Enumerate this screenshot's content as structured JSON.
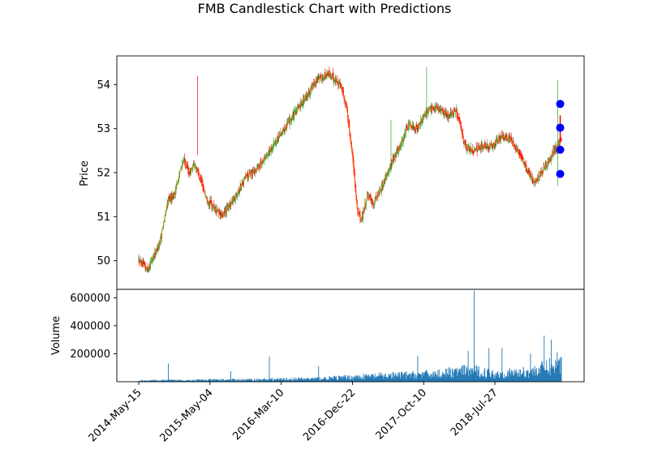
{
  "chart_data": [
    {
      "type": "candlestick",
      "title": "FMB Candlestick Chart with Predictions",
      "ylabel": "Price",
      "ylim": [
        49.35,
        54.65
      ],
      "yticks": [
        50,
        51,
        52,
        53,
        54
      ],
      "up_color": "#2ca02c",
      "down_color": "#ff0000",
      "path_color": "#ff7f0e",
      "trend_points": [
        [
          0,
          50.0
        ],
        [
          15,
          49.8
        ],
        [
          35,
          50.4
        ],
        [
          50,
          51.4
        ],
        [
          60,
          51.5
        ],
        [
          75,
          52.3
        ],
        [
          85,
          52.0
        ],
        [
          95,
          52.2
        ],
        [
          115,
          51.4
        ],
        [
          140,
          51.0
        ],
        [
          160,
          51.4
        ],
        [
          180,
          51.9
        ],
        [
          200,
          52.1
        ],
        [
          220,
          52.5
        ],
        [
          240,
          52.9
        ],
        [
          260,
          53.3
        ],
        [
          280,
          53.7
        ],
        [
          300,
          54.1
        ],
        [
          320,
          54.25
        ],
        [
          340,
          54.0
        ],
        [
          350,
          53.5
        ],
        [
          360,
          52.4
        ],
        [
          368,
          51.2
        ],
        [
          375,
          50.9
        ],
        [
          385,
          51.5
        ],
        [
          395,
          51.3
        ],
        [
          410,
          51.7
        ],
        [
          425,
          52.2
        ],
        [
          440,
          52.6
        ],
        [
          455,
          53.1
        ],
        [
          470,
          53.0
        ],
        [
          485,
          53.4
        ],
        [
          500,
          53.5
        ],
        [
          520,
          53.3
        ],
        [
          535,
          53.4
        ],
        [
          550,
          52.6
        ],
        [
          565,
          52.5
        ],
        [
          580,
          52.6
        ],
        [
          595,
          52.6
        ],
        [
          610,
          52.8
        ],
        [
          625,
          52.8
        ],
        [
          645,
          52.3
        ],
        [
          665,
          51.8
        ],
        [
          680,
          52.0
        ],
        [
          700,
          52.5
        ],
        [
          710,
          52.7
        ]
      ],
      "spikes": [
        {
          "x_index": 99,
          "high": 54.2,
          "low": 52.4
        },
        {
          "x_index": 425,
          "high": 53.2,
          "low": 52.0
        },
        {
          "x_index": 485,
          "high": 54.4,
          "low": 53.2
        },
        {
          "x_index": 706,
          "high": 54.1,
          "low": 51.7
        }
      ],
      "predictions": {
        "color": "#0000ff",
        "x_index": 710,
        "values": [
          53.56,
          53.02,
          52.52,
          51.97
        ]
      }
    },
    {
      "type": "bar",
      "ylabel": "Volume",
      "ylim": [
        0,
        660000
      ],
      "yticks": [
        200000,
        400000,
        600000
      ],
      "ytick_labels": [
        "200000",
        "400000",
        "600000"
      ],
      "color": "#1f77b4",
      "base_points": [
        [
          0,
          8000
        ],
        [
          100,
          12000
        ],
        [
          200,
          15000
        ],
        [
          300,
          22000
        ],
        [
          400,
          40000
        ],
        [
          500,
          55000
        ],
        [
          560,
          80000
        ],
        [
          600,
          55000
        ],
        [
          660,
          70000
        ],
        [
          712,
          130000
        ]
      ],
      "spikes": [
        {
          "x_index": 50,
          "value": 130000
        },
        {
          "x_index": 155,
          "value": 75000
        },
        {
          "x_index": 220,
          "value": 180000
        },
        {
          "x_index": 303,
          "value": 110000
        },
        {
          "x_index": 470,
          "value": 185000
        },
        {
          "x_index": 555,
          "value": 220000
        },
        {
          "x_index": 565,
          "value": 650000
        },
        {
          "x_index": 590,
          "value": 240000
        },
        {
          "x_index": 612,
          "value": 240000
        },
        {
          "x_index": 660,
          "value": 200000
        },
        {
          "x_index": 683,
          "value": 330000
        },
        {
          "x_index": 695,
          "value": 300000
        },
        {
          "x_index": 705,
          "value": 210000
        }
      ],
      "xtick_labels": [
        "2014-May-15",
        "2015-May-04",
        "2016-Mar-10",
        "2016-Dec-22",
        "2017-Oct-10",
        "2018-Jul-27"
      ],
      "xticks_index": [
        0,
        120,
        240,
        360,
        480,
        600
      ]
    }
  ]
}
